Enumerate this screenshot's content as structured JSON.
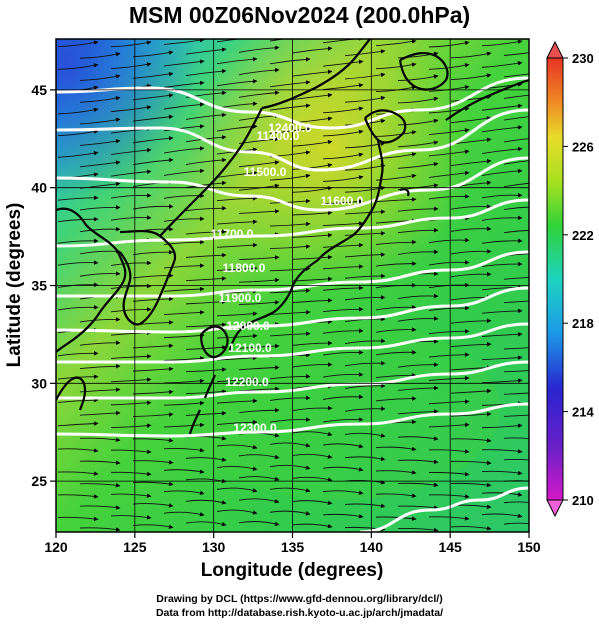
{
  "title": "MSM 00Z06Nov2024 (200.0hPa)",
  "x_axis": {
    "label": "Longitude (degrees)",
    "ticks": [
      "120",
      "125",
      "130",
      "135",
      "140",
      "145",
      "150"
    ]
  },
  "y_axis": {
    "label": "Latitude  (degrees)",
    "ticks": [
      "25",
      "30",
      "35",
      "40",
      "45"
    ]
  },
  "colorbar": {
    "ticks": [
      "210",
      "214",
      "218",
      "222",
      "226",
      "230"
    ],
    "colors": [
      "#d418c8",
      "#2a24d0",
      "#1c9be8",
      "#1ed3c0",
      "#2fd33a",
      "#a8e020",
      "#e8dc2a",
      "#f08a24",
      "#e83424"
    ]
  },
  "contour_labels": [
    "11400.0",
    "11500.0",
    "11600.0",
    "11700.0",
    "11800.0",
    "11900.0",
    "12000.0",
    "12100.0",
    "12200.0",
    "12300.0",
    "12400.0"
  ],
  "credits": {
    "line1": "Drawing by DCL (https://www.gfd-dennou.org/library/dcl/)",
    "line2": "Data from http://database.rish.kyoto-u.ac.jp/arch/jmadata/"
  }
}
